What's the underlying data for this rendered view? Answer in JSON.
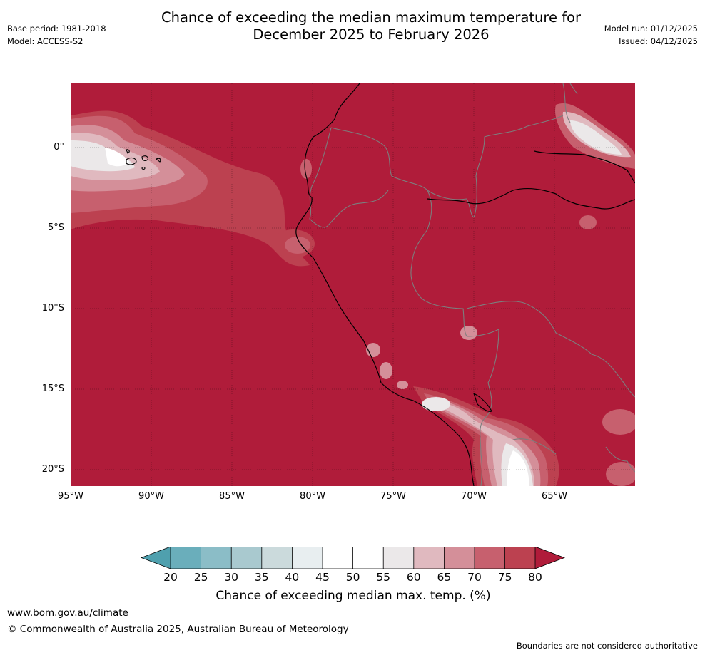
{
  "header": {
    "title_line1": "Chance of exceeding the median maximum temperature for",
    "title_line2": "December 2025 to February 2026",
    "base_period": "Base period: 1981-2018",
    "model": "Model: ACCESS-S2",
    "model_run": "Model run: 01/12/2025",
    "issued": "Issued: 04/12/2025"
  },
  "map": {
    "lat_labels": [
      "0°",
      "5°S",
      "10°S",
      "15°S",
      "20°S"
    ],
    "lon_labels": [
      "95°W",
      "90°W",
      "85°W",
      "80°W",
      "75°W",
      "70°W",
      "65°W"
    ],
    "extent": {
      "lon_min": -95,
      "lon_max": -60,
      "lat_min": -21,
      "lat_max": 4
    }
  },
  "legend": {
    "title": "Chance of exceeding median max. temp. (%)",
    "ticks": [
      "20",
      "25",
      "30",
      "35",
      "40",
      "45",
      "50",
      "55",
      "60",
      "65",
      "70",
      "75",
      "80"
    ],
    "colors": [
      "#4fa0ae",
      "#6aaebb",
      "#8bbdc7",
      "#a9c9cf",
      "#cbdadc",
      "#e8eef0",
      "#ffffff",
      "#ffffff",
      "#ebe8e9",
      "#e0b9bf",
      "#d48f99",
      "#c7606e",
      "#bc4150",
      "#b01c3a"
    ]
  },
  "footer": {
    "url": "www.bom.gov.au/climate",
    "copyright": "© Commonwealth of Australia 2025, Australian Bureau of Meteorology",
    "disclaimer": "Boundaries are not considered authoritative"
  }
}
